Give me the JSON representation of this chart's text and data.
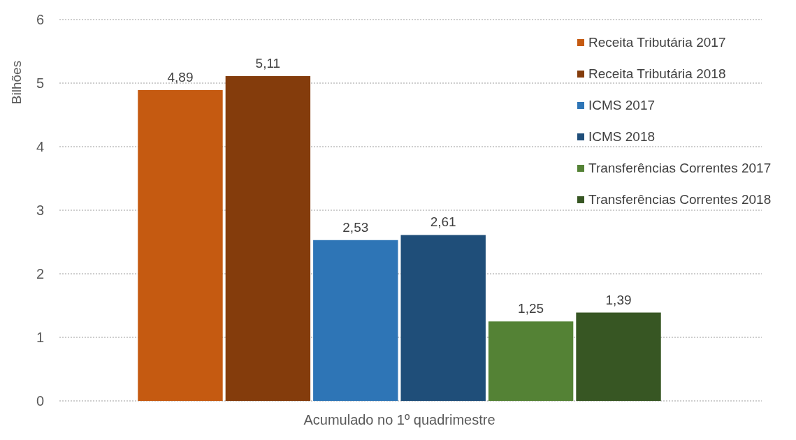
{
  "chart_data": {
    "type": "bar",
    "categories": [
      "Acumulado no 1º quadrimestre"
    ],
    "ylabel": "Bilhões",
    "ylim": [
      0,
      6
    ],
    "yticks": [
      0,
      1,
      2,
      3,
      4,
      5,
      6
    ],
    "grid": "y",
    "legend": "right",
    "series": [
      {
        "name": "Receita Tributária 2017",
        "color": "#c55a11",
        "values": [
          4.89
        ],
        "value_labels": [
          "4,89"
        ]
      },
      {
        "name": "Receita Tributária 2018",
        "color": "#843c0c",
        "values": [
          5.11
        ],
        "value_labels": [
          "5,11"
        ]
      },
      {
        "name": "ICMS 2017",
        "color": "#2e75b6",
        "values": [
          2.53
        ],
        "value_labels": [
          "2,53"
        ]
      },
      {
        "name": "ICMS 2018",
        "color": "#1f4e79",
        "values": [
          2.61
        ],
        "value_labels": [
          "2,61"
        ]
      },
      {
        "name": "Transferências Correntes 2017",
        "color": "#548235",
        "values": [
          1.25
        ],
        "value_labels": [
          "1,25"
        ]
      },
      {
        "name": "Transferências Correntes 2018",
        "color": "#375623",
        "values": [
          1.39
        ],
        "value_labels": [
          "1,39"
        ]
      }
    ]
  }
}
